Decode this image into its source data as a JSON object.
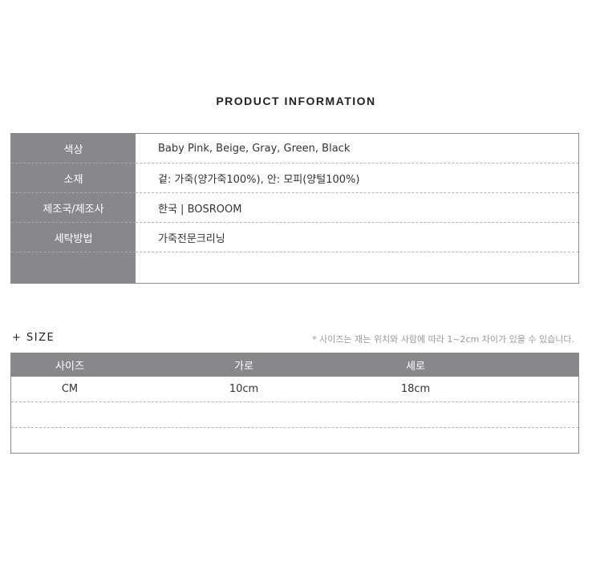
{
  "title": "PRODUCT INFORMATION",
  "info_rows": [
    {
      "label": "색상",
      "value": "Baby Pink, Beige, Gray, Green, Black"
    },
    {
      "label": "소재",
      "value": "겉: 가죽(양가죽100%), 안: 모피(양털100%)"
    },
    {
      "label": "제조국/제조사",
      "value": "한국 |  BOSROOM"
    },
    {
      "label": "세탁방법",
      "value": "가죽전문크리닝"
    },
    {
      "label": "",
      "value": ""
    }
  ],
  "size_section": {
    "label": "+ SIZE",
    "note": "* 사이즈는 재는 위치와 사람에 따라 1~2cm 차이가 있을 수 있습니다.",
    "headers": [
      "사이즈",
      "가로",
      "세로"
    ],
    "rows": [
      [
        "CM",
        "10cm",
        "18cm"
      ],
      [
        "",
        "",
        ""
      ],
      [
        "",
        "",
        ""
      ]
    ]
  },
  "colors": {
    "header_gray": "#88878c"
  }
}
